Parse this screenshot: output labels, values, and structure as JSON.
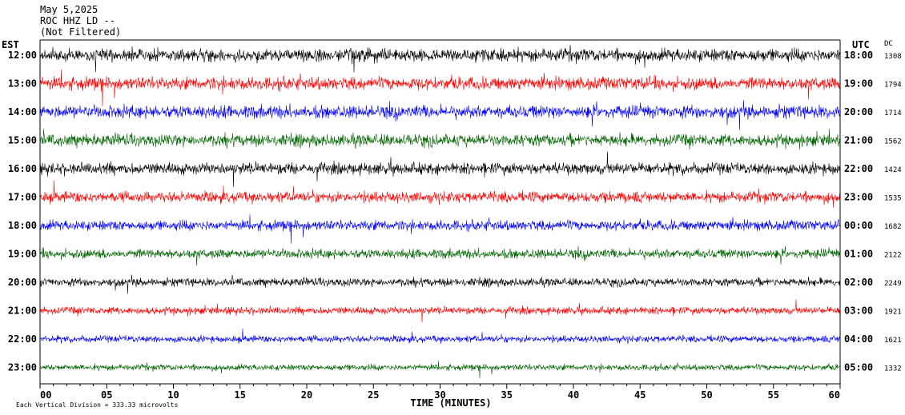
{
  "header": {
    "date": "May 5,2025",
    "station": "ROC HHZ LD --",
    "filter": "(Not Filtered)"
  },
  "chart_data": {
    "type": "line",
    "title": "",
    "left_axis_label": "EST",
    "right_axis_label": "UTC",
    "dc_label": "DC",
    "xlabel": "TIME (MINUTES)",
    "xlim": [
      0,
      60
    ],
    "x_ticks": [
      "00",
      "05",
      "10",
      "15",
      "20",
      "25",
      "30",
      "35",
      "40",
      "45",
      "50",
      "55",
      "60"
    ],
    "trace_colors": [
      "#000000",
      "#ff0000",
      "#0000ff",
      "#006400"
    ],
    "rows": [
      {
        "est": "12:00",
        "utc": "18:00",
        "dc": "1308",
        "color": "#000000",
        "noise": 0.95
      },
      {
        "est": "13:00",
        "utc": "19:00",
        "dc": "1794",
        "color": "#ff0000",
        "noise": 0.95
      },
      {
        "est": "14:00",
        "utc": "20:00",
        "dc": "1714",
        "color": "#0000ff",
        "noise": 0.95
      },
      {
        "est": "15:00",
        "utc": "21:00",
        "dc": "1562",
        "color": "#006400",
        "noise": 0.9
      },
      {
        "est": "16:00",
        "utc": "22:00",
        "dc": "1424",
        "color": "#000000",
        "noise": 0.85
      },
      {
        "est": "17:00",
        "utc": "23:00",
        "dc": "1535",
        "color": "#ff0000",
        "noise": 0.8
      },
      {
        "est": "18:00",
        "utc": "00:00",
        "dc": "1682",
        "color": "#0000ff",
        "noise": 0.75
      },
      {
        "est": "19:00",
        "utc": "01:00",
        "dc": "2122",
        "color": "#006400",
        "noise": 0.7
      },
      {
        "est": "20:00",
        "utc": "02:00",
        "dc": "2249",
        "color": "#000000",
        "noise": 0.6
      },
      {
        "est": "21:00",
        "utc": "03:00",
        "dc": "1921",
        "color": "#ff0000",
        "noise": 0.55
      },
      {
        "est": "22:00",
        "utc": "04:00",
        "dc": "1621",
        "color": "#0000ff",
        "noise": 0.5
      },
      {
        "est": "23:00",
        "utc": "05:00",
        "dc": "1332",
        "color": "#006400",
        "noise": 0.45
      }
    ],
    "scale_note": "Each Vertical Division = 333.33 microvolts",
    "grid": false
  }
}
